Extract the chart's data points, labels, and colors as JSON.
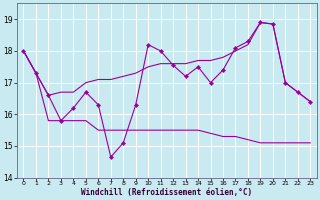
{
  "xlabel": "Windchill (Refroidissement éolien,°C)",
  "bg_color": "#c8eaf0",
  "line_color": "#990099",
  "grid_color": "#b0d8e0",
  "ylim": [
    14,
    19.5
  ],
  "xlim": [
    -0.5,
    23.5
  ],
  "yticks": [
    14,
    15,
    16,
    17,
    18,
    19
  ],
  "xticks": [
    0,
    1,
    2,
    3,
    4,
    5,
    6,
    7,
    8,
    9,
    10,
    11,
    12,
    13,
    14,
    15,
    16,
    17,
    18,
    19,
    20,
    21,
    22,
    23
  ],
  "series1_x": [
    0,
    1,
    2,
    3,
    4,
    5,
    6,
    7,
    8,
    9,
    10,
    11,
    12,
    13,
    14,
    15,
    16,
    17,
    18,
    19,
    20,
    21,
    22,
    23
  ],
  "series1_y": [
    18.0,
    17.3,
    16.6,
    15.8,
    16.2,
    16.7,
    16.3,
    14.65,
    15.1,
    16.3,
    18.2,
    18.0,
    17.55,
    17.2,
    17.5,
    17.0,
    17.4,
    18.1,
    18.3,
    18.9,
    18.85,
    17.0,
    16.7,
    16.4
  ],
  "series2_x": [
    0,
    1,
    2,
    3,
    4,
    5,
    6,
    7,
    8,
    9,
    10,
    11,
    12,
    13,
    14,
    15,
    16,
    17,
    18,
    19,
    20,
    21,
    22,
    23
  ],
  "series2_y": [
    18.0,
    17.3,
    15.8,
    15.8,
    15.8,
    15.8,
    15.5,
    15.5,
    15.5,
    15.5,
    15.5,
    15.5,
    15.5,
    15.5,
    15.5,
    15.4,
    15.3,
    15.3,
    15.2,
    15.1,
    15.1,
    15.1,
    15.1,
    15.1
  ],
  "series3_x": [
    0,
    1,
    2,
    3,
    4,
    5,
    6,
    7,
    8,
    9,
    10,
    11,
    12,
    13,
    14,
    15,
    16,
    17,
    18,
    19,
    20,
    21,
    22,
    23
  ],
  "series3_y": [
    18.0,
    17.3,
    16.6,
    16.7,
    16.7,
    17.0,
    17.1,
    17.1,
    17.2,
    17.3,
    17.5,
    17.6,
    17.6,
    17.6,
    17.7,
    17.7,
    17.8,
    18.0,
    18.2,
    18.9,
    18.85,
    17.0,
    16.7,
    16.4
  ]
}
